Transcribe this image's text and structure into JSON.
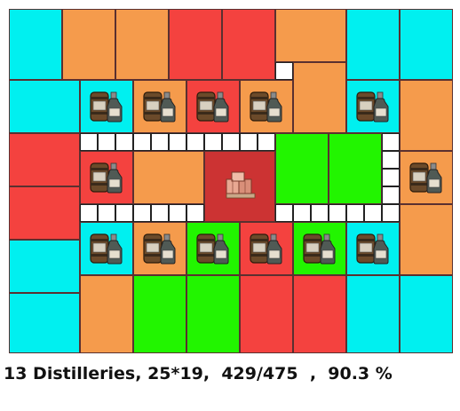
{
  "status_line": "13 Distilleries, 25*19,  429/475  ,  90.3 %",
  "colors": {
    "cyan": "#00f0f0",
    "orange": "#f59b4c",
    "red": "#f4423f",
    "green": "#22f500",
    "warehouse": "#cc3333",
    "road": "#ffffff"
  },
  "icons": {
    "distillery": "distillery-barrel-bottle-icon",
    "warehouse": "warehouse-crates-icon"
  }
}
